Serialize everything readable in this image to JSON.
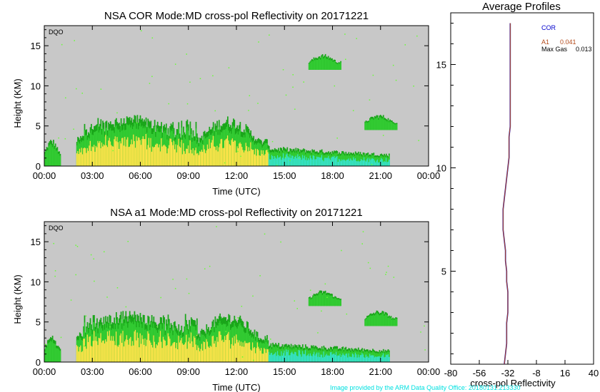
{
  "colors": {
    "background": "#c8c8c8",
    "echo_dark_green": "#1aa61a",
    "echo_green": "#33cc33",
    "echo_light_green": "#66ff33",
    "echo_yellow": "#ffe44a",
    "echo_cyan": "#36e2c8",
    "cor_line": "#0000cc",
    "a1_line": "#b34a1a",
    "credit_text": "#00e0e0"
  },
  "chart_data": [
    {
      "type": "heatmap",
      "title": "NSA COR  Mode:MD  cross-pol Reflectivity on 20171221",
      "xlabel": "Time (UTC)",
      "ylabel": "Height (KM)",
      "panel_tag": "DQO",
      "x_ticks": [
        "00:00",
        "03:00",
        "06:00",
        "09:00",
        "12:00",
        "15:00",
        "18:00",
        "21:00",
        "00:00"
      ],
      "y_ticks": [
        "0",
        "5",
        "10",
        "15"
      ],
      "xlim": [
        0,
        24
      ],
      "ylim": [
        0,
        17.5
      ],
      "cloud_regions": [
        {
          "name": "early-echo",
          "t_start": 0.0,
          "t_end": 1.0,
          "top_km": 3.5
        },
        {
          "name": "main-system",
          "t_start": 2.0,
          "t_end": 9.5,
          "top_km": 6.5
        },
        {
          "name": "midday-system",
          "t_start": 9.5,
          "t_end": 14.0,
          "top_km": 6.3
        },
        {
          "name": "afternoon-low",
          "t_start": 14.0,
          "t_end": 21.5,
          "top_km": 2.5
        },
        {
          "name": "cirrus-18utc",
          "t_start": 16.5,
          "t_end": 18.5,
          "base_km": 12.0,
          "top_km": 14.0
        },
        {
          "name": "late-echo",
          "t_start": 20.0,
          "t_end": 22.0,
          "base_km": 4.5,
          "top_km": 6.5
        }
      ]
    },
    {
      "type": "heatmap",
      "title": "NSA a1  Mode:MD  cross-pol Reflectivity on 20171221",
      "xlabel": "Time (UTC)",
      "ylabel": "Height (KM)",
      "panel_tag": "DQO",
      "x_ticks": [
        "00:00",
        "03:00",
        "06:00",
        "09:00",
        "12:00",
        "15:00",
        "18:00",
        "21:00",
        "00:00"
      ],
      "y_ticks": [
        "0",
        "5",
        "10",
        "15"
      ],
      "xlim": [
        0,
        24
      ],
      "ylim": [
        0,
        17.5
      ],
      "cloud_regions": [
        {
          "name": "early-echo",
          "t_start": 0.0,
          "t_end": 1.0,
          "top_km": 3.5
        },
        {
          "name": "main-system",
          "t_start": 2.0,
          "t_end": 9.5,
          "top_km": 6.5
        },
        {
          "name": "midday-system",
          "t_start": 9.5,
          "t_end": 14.0,
          "top_km": 6.3
        },
        {
          "name": "afternoon-low",
          "t_start": 14.0,
          "t_end": 21.5,
          "top_km": 2.5
        },
        {
          "name": "cirrus-18utc",
          "t_start": 16.5,
          "t_end": 18.5,
          "base_km": 7.0,
          "top_km": 9.0
        },
        {
          "name": "late-echo",
          "t_start": 20.0,
          "t_end": 22.0,
          "base_km": 4.5,
          "top_km": 6.5
        }
      ]
    },
    {
      "type": "line",
      "title": "Average Profiles",
      "xlabel": "cross-pol Reflectivity",
      "x_ticks": [
        "-80",
        "-56",
        "-32",
        "-8",
        "16",
        "40"
      ],
      "y_ticks": [
        "5",
        "10",
        "15"
      ],
      "xlim": [
        -80,
        40
      ],
      "ylim": [
        0.5,
        17.5
      ],
      "legend": {
        "placement": "top-right",
        "entries": [
          {
            "label": "COR",
            "value": ""
          },
          {
            "label": "A1",
            "value": "0.041"
          },
          {
            "label": "Max Gas",
            "value": "0.013"
          }
        ]
      },
      "series": [
        {
          "name": "COR",
          "x": [
            -35,
            -34,
            -33,
            -33,
            -33,
            -32,
            -32,
            -32,
            -33,
            -33,
            -34,
            -34,
            -35,
            -36,
            -36,
            -36,
            -35,
            -34,
            -33,
            -32,
            -31,
            -31,
            -31,
            -30,
            -30,
            -30,
            -30,
            -30,
            -30,
            -30,
            -30,
            -30,
            -30,
            -30
          ],
          "y": [
            0.5,
            1.0,
            1.5,
            2.0,
            2.5,
            3.0,
            3.5,
            4.0,
            4.5,
            5.0,
            5.5,
            6.0,
            6.5,
            7.0,
            7.5,
            8.0,
            8.5,
            9.0,
            9.5,
            10.0,
            10.5,
            11.0,
            11.5,
            12.0,
            12.5,
            13.0,
            13.5,
            14.0,
            14.5,
            15.0,
            15.5,
            16.0,
            16.5,
            17.0
          ]
        },
        {
          "name": "A1",
          "x": [
            -35,
            -34,
            -33,
            -33,
            -33,
            -32,
            -32,
            -32,
            -33,
            -33,
            -34,
            -34,
            -35,
            -36,
            -36,
            -36,
            -35,
            -34,
            -33,
            -32,
            -31,
            -31,
            -31,
            -30,
            -30,
            -30,
            -30,
            -30,
            -30,
            -30,
            -30,
            -30,
            -30,
            -30
          ],
          "y": [
            0.5,
            1.0,
            1.5,
            2.0,
            2.5,
            3.0,
            3.5,
            4.0,
            4.5,
            5.0,
            5.5,
            6.0,
            6.5,
            7.0,
            7.5,
            8.0,
            8.5,
            9.0,
            9.5,
            10.0,
            10.5,
            11.0,
            11.5,
            12.0,
            12.5,
            13.0,
            13.5,
            14.0,
            14.5,
            15.0,
            15.5,
            16.0,
            16.5,
            17.0
          ]
        }
      ]
    }
  ],
  "credit": "Image provided by the ARM Data Quality Office: 20180131.213330"
}
